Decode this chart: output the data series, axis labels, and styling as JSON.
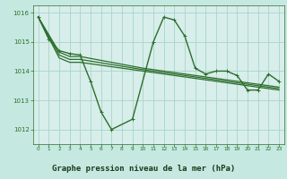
{
  "title": "Graphe pression niveau de la mer (hPa)",
  "bg_color": "#c5e8e0",
  "plot_bg_color": "#d8eeea",
  "footer_bg_color": "#5a9e7a",
  "grid_color": "#a8d4cc",
  "line_color": "#2d6e2d",
  "title_color": "#1a4a1a",
  "xlim": [
    -0.5,
    23.5
  ],
  "ylim": [
    1011.5,
    1016.25
  ],
  "yticks": [
    1012,
    1013,
    1014,
    1015,
    1016
  ],
  "xticks": [
    0,
    1,
    2,
    3,
    4,
    5,
    6,
    7,
    8,
    9,
    10,
    11,
    12,
    13,
    14,
    15,
    16,
    17,
    18,
    19,
    20,
    21,
    22,
    23
  ],
  "series": [
    {
      "x": [
        0,
        1,
        2,
        3,
        4,
        5,
        6,
        7,
        9,
        11,
        12,
        13,
        14,
        15,
        16,
        17,
        18,
        19,
        20,
        21,
        22,
        23
      ],
      "y": [
        1015.85,
        1015.1,
        1014.7,
        1014.6,
        1014.55,
        1013.65,
        1012.6,
        1012.0,
        1012.35,
        1015.0,
        1015.85,
        1015.75,
        1015.2,
        1014.1,
        1013.9,
        1014.0,
        1014.0,
        1013.85,
        1013.35,
        1013.35,
        1013.9,
        1013.65
      ],
      "lw": 1.0,
      "marker": true
    },
    {
      "x": [
        0,
        2,
        3,
        4,
        10,
        11,
        12,
        13,
        14,
        15,
        16,
        17,
        18,
        19,
        20,
        21,
        22,
        23
      ],
      "y": [
        1015.85,
        1014.65,
        1014.5,
        1014.5,
        1014.1,
        1014.05,
        1014.0,
        1013.95,
        1013.9,
        1013.85,
        1013.8,
        1013.75,
        1013.7,
        1013.65,
        1013.6,
        1013.55,
        1013.5,
        1013.45
      ],
      "lw": 0.9,
      "marker": false
    },
    {
      "x": [
        0,
        2,
        3,
        4,
        10,
        11,
        12,
        13,
        14,
        15,
        16,
        17,
        18,
        19,
        20,
        21,
        22,
        23
      ],
      "y": [
        1015.85,
        1014.55,
        1014.4,
        1014.4,
        1014.05,
        1014.0,
        1013.95,
        1013.9,
        1013.85,
        1013.8,
        1013.75,
        1013.7,
        1013.65,
        1013.6,
        1013.55,
        1013.5,
        1013.45,
        1013.4
      ],
      "lw": 0.9,
      "marker": false
    },
    {
      "x": [
        0,
        2,
        3,
        4,
        10,
        11,
        12,
        13,
        14,
        15,
        16,
        17,
        18,
        19,
        20,
        21,
        22,
        23
      ],
      "y": [
        1015.85,
        1014.45,
        1014.3,
        1014.3,
        1014.0,
        1013.95,
        1013.9,
        1013.85,
        1013.8,
        1013.75,
        1013.7,
        1013.65,
        1013.6,
        1013.55,
        1013.5,
        1013.45,
        1013.4,
        1013.35
      ],
      "lw": 0.9,
      "marker": false
    }
  ]
}
